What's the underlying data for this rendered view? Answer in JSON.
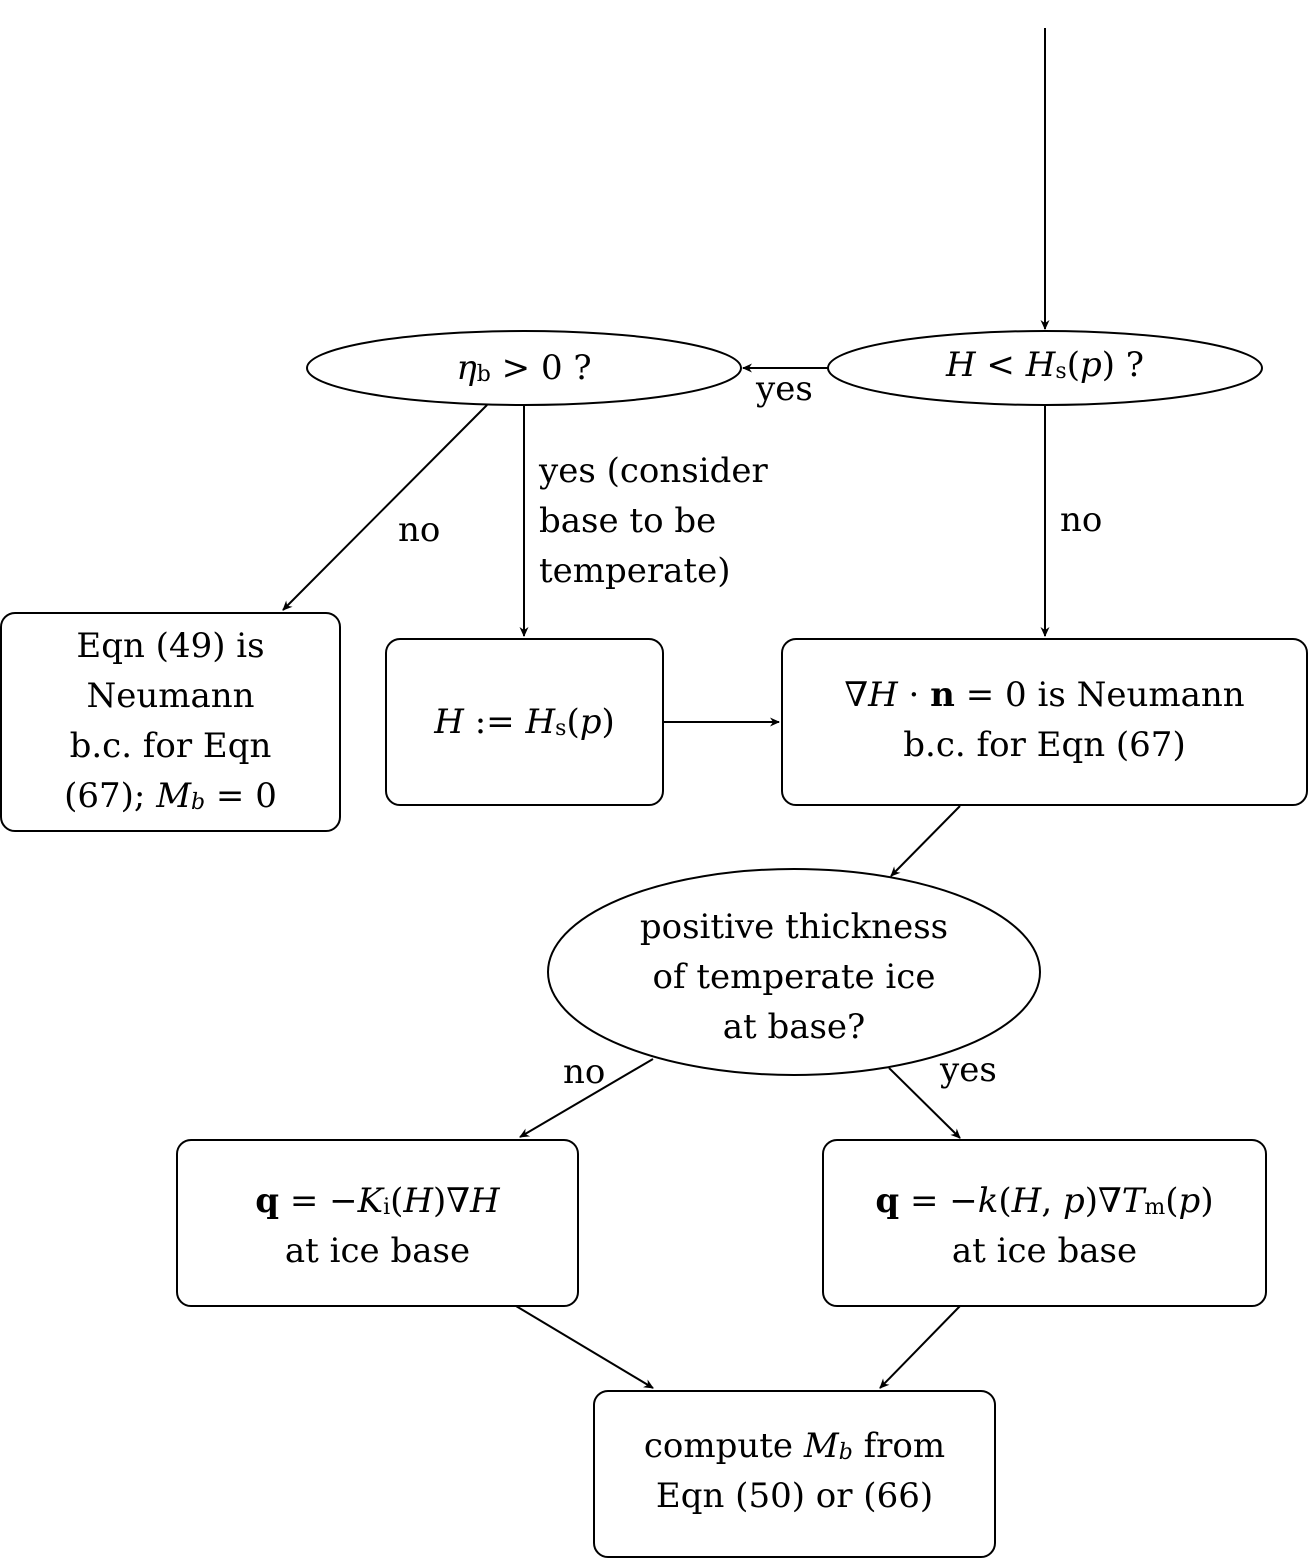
{
  "nodes": {
    "decision_h_lt_hs": {
      "segments": [
        {
          "t": "H",
          "s": "m"
        },
        {
          "t": " < ",
          "s": ""
        },
        {
          "t": "H",
          "s": "m"
        },
        {
          "t": "s",
          "s": "sub"
        },
        {
          "t": "(",
          "s": ""
        },
        {
          "t": "p",
          "s": "m"
        },
        {
          "t": ") ?",
          "s": ""
        }
      ]
    },
    "decision_eta_b": {
      "segments": [
        {
          "t": "η",
          "s": "m"
        },
        {
          "t": "b",
          "s": "sub"
        },
        {
          "t": " > 0 ?",
          "s": ""
        }
      ]
    },
    "box_neumann_49": {
      "lines": [
        "Eqn (49) is",
        "Neumann",
        "b.c. for Eqn"
      ],
      "last_line_segments": [
        {
          "t": "(67); ",
          "s": ""
        },
        {
          "t": "M",
          "s": "m"
        },
        {
          "t": "b",
          "s": "subi"
        },
        {
          "t": " = 0",
          "s": ""
        }
      ]
    },
    "box_h_assign": {
      "segments": [
        {
          "t": "H",
          "s": "m"
        },
        {
          "t": " := ",
          "s": ""
        },
        {
          "t": "H",
          "s": "m"
        },
        {
          "t": "s",
          "s": "sub"
        },
        {
          "t": "(",
          "s": ""
        },
        {
          "t": "p",
          "s": "m"
        },
        {
          "t": ")",
          "s": ""
        }
      ]
    },
    "box_grad_neumann": {
      "line1_segments": [
        {
          "t": "∇",
          "s": ""
        },
        {
          "t": "H",
          "s": "m"
        },
        {
          "t": " · ",
          "s": ""
        },
        {
          "t": "n",
          "s": "b"
        },
        {
          "t": " = 0 is Neumann",
          "s": ""
        }
      ],
      "line2": "b.c. for Eqn (67)"
    },
    "decision_temperate": {
      "lines": [
        "positive thickness",
        "of temperate ice",
        "at base?"
      ]
    },
    "box_q_ki": {
      "line1_segments": [
        {
          "t": "q",
          "s": "b"
        },
        {
          "t": " = −",
          "s": ""
        },
        {
          "t": "K",
          "s": "m"
        },
        {
          "t": "i",
          "s": "sub"
        },
        {
          "t": "(",
          "s": ""
        },
        {
          "t": "H",
          "s": "m"
        },
        {
          "t": ")∇",
          "s": ""
        },
        {
          "t": "H",
          "s": "m"
        }
      ],
      "line2": "at ice base"
    },
    "box_q_k": {
      "line1_segments": [
        {
          "t": "q",
          "s": "b"
        },
        {
          "t": " = −",
          "s": ""
        },
        {
          "t": "k",
          "s": "m"
        },
        {
          "t": "(",
          "s": ""
        },
        {
          "t": "H",
          "s": "m"
        },
        {
          "t": ", ",
          "s": ""
        },
        {
          "t": "p",
          "s": "m"
        },
        {
          "t": ")∇",
          "s": ""
        },
        {
          "t": "T",
          "s": "m"
        },
        {
          "t": "m",
          "s": "sub"
        },
        {
          "t": "(",
          "s": ""
        },
        {
          "t": "p",
          "s": "m"
        },
        {
          "t": ")",
          "s": ""
        }
      ],
      "line2": "at ice base"
    },
    "box_compute_mb": {
      "line1_segments": [
        {
          "t": "compute ",
          "s": ""
        },
        {
          "t": "M",
          "s": "m"
        },
        {
          "t": "b",
          "s": "subi"
        },
        {
          "t": " from",
          "s": ""
        }
      ],
      "line2": "Eqn (50) or (66)"
    }
  },
  "edge_labels": {
    "yes_to_eta": "yes",
    "no_eta": "no",
    "yes_consider": [
      "yes (consider",
      "base to be",
      "temperate)"
    ],
    "no_h": "no",
    "no_temperate": "no",
    "yes_temperate": "yes"
  },
  "colors": {
    "stroke": "#000000",
    "background": "#ffffff"
  }
}
